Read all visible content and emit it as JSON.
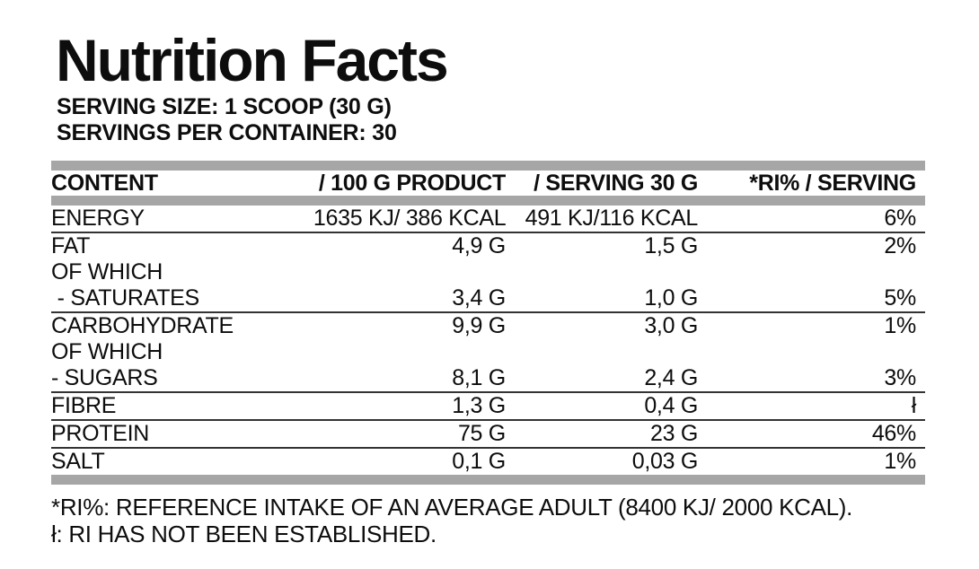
{
  "title": "Nutrition Facts",
  "serving_size": "SERVING SIZE: 1 SCOOP (30 G)",
  "servings_per_container": "SERVINGS PER CONTAINER: 30",
  "table": {
    "columns": {
      "content": "CONTENT",
      "per_100g": "/ 100 G PRODUCT",
      "per_serving": "/ SERVING 30 G",
      "ri_percent": "*RI% / SERVING"
    },
    "rows": [
      {
        "content": "ENERGY",
        "per_100g": "1635 KJ/ 386 KCAL",
        "per_serving": "491 KJ/116 KCAL",
        "ri_percent": "6%",
        "divider_above": false
      },
      {
        "content": "FAT",
        "per_100g": "4,9 G",
        "per_serving": "1,5 G",
        "ri_percent": "2%",
        "divider_above": true
      },
      {
        "content": "OF WHICH",
        "per_100g": "",
        "per_serving": "",
        "ri_percent": "",
        "divider_above": false
      },
      {
        "content": " - SATURATES",
        "per_100g": "3,4 G",
        "per_serving": "1,0 G",
        "ri_percent": "5%",
        "divider_above": false
      },
      {
        "content": "CARBOHYDRATE",
        "per_100g": "9,9 G",
        "per_serving": "3,0 G",
        "ri_percent": "1%",
        "divider_above": true
      },
      {
        "content": "OF WHICH",
        "per_100g": "",
        "per_serving": "",
        "ri_percent": "",
        "divider_above": false
      },
      {
        "content": "- SUGARS",
        "per_100g": "8,1 G",
        "per_serving": "2,4 G",
        "ri_percent": "3%",
        "divider_above": false
      },
      {
        "content": "FIBRE",
        "per_100g": "1,3 G",
        "per_serving": "0,4 G",
        "ri_percent": "ł",
        "divider_above": true
      },
      {
        "content": "PROTEIN",
        "per_100g": "75 G",
        "per_serving": "23 G",
        "ri_percent": "46%",
        "divider_above": true
      },
      {
        "content": "SALT",
        "per_100g": "0,1 G",
        "per_serving": "0,03 G",
        "ri_percent": "1%",
        "divider_above": true
      }
    ]
  },
  "footnotes": {
    "ri_note": "*RI%: REFERENCE INTAKE OF AN AVERAGE ADULT (8400 KJ/ 2000 KCAL).",
    "not_established_note": "ł: RI HAS NOT BEEN ESTABLISHED."
  },
  "colors": {
    "text": "#0d0d0d",
    "separator_bar": "#a6a6a6",
    "row_divider": "#333333",
    "background": "#ffffff"
  }
}
